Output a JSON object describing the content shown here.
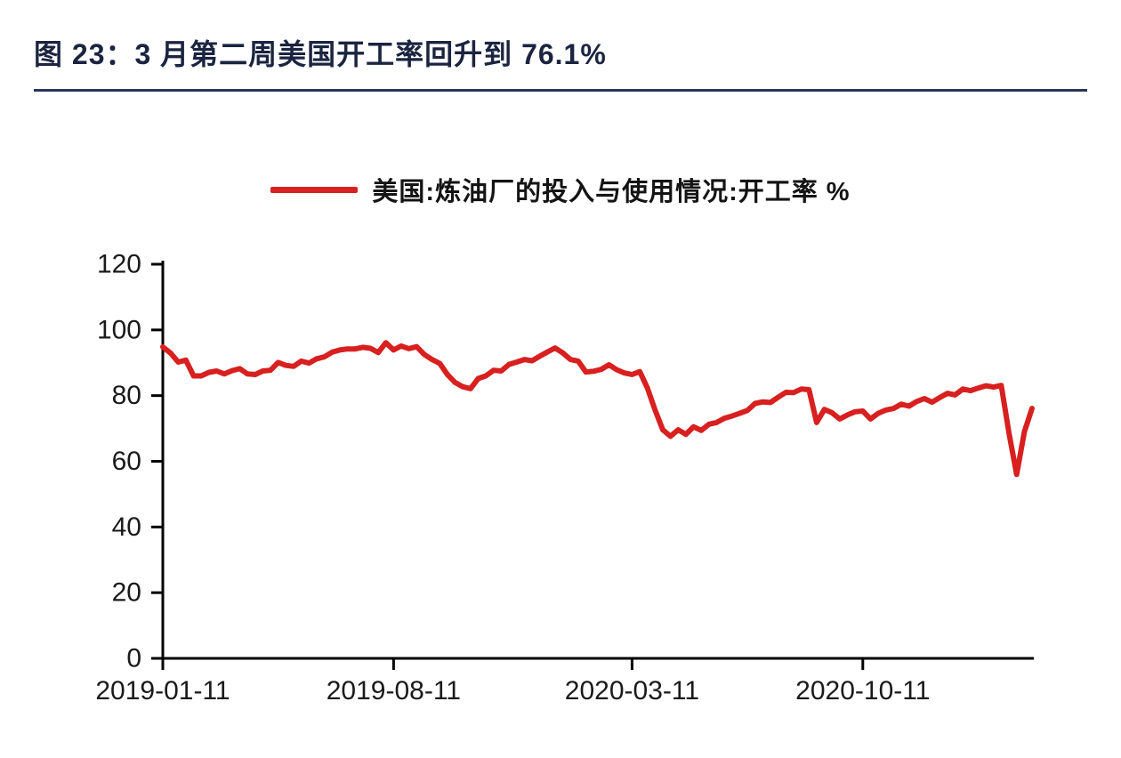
{
  "header": {
    "title": "图 23：3 月第二周美国开工率回升到 76.1%"
  },
  "legend": {
    "label": "美国:炼油厂的投入与使用情况:开工率 %"
  },
  "colors": {
    "series_red": "#d7201f",
    "title_text": "#1b2440",
    "divider_navy": "#293659",
    "axis": "#000000",
    "tick_text": "#1a1a1a",
    "background": "#ffffff"
  },
  "chart_data": {
    "type": "line",
    "title": "图 23：3 月第二周美国开工率回升到 76.1%",
    "xlabel": "",
    "ylabel": "",
    "ylim": [
      0,
      120
    ],
    "y_ticks": [
      0,
      20,
      40,
      60,
      80,
      100,
      120
    ],
    "x_tick_labels": [
      "2019-01-11",
      "2019-08-11",
      "2020-03-11",
      "2020-10-11"
    ],
    "x_tick_indices": [
      0,
      30,
      61,
      91
    ],
    "grid": false,
    "legend_position": "top",
    "series": [
      {
        "name": "美国:炼油厂的投入与使用情况:开工率 %",
        "color": "#d7201f",
        "values": [
          94.8,
          93.0,
          90.2,
          90.8,
          86.0,
          86.0,
          87.1,
          87.5,
          86.6,
          87.6,
          88.2,
          86.6,
          86.4,
          87.5,
          87.7,
          90.1,
          89.2,
          88.9,
          90.5,
          89.9,
          91.2,
          91.8,
          93.2,
          93.9,
          94.2,
          94.2,
          94.7,
          94.4,
          93.1,
          96.1,
          93.9,
          95.1,
          94.3,
          94.9,
          92.5,
          91.0,
          89.8,
          86.4,
          84.0,
          82.7,
          82.1,
          85.2,
          86.0,
          87.7,
          87.5,
          89.5,
          90.2,
          91.0,
          90.6,
          92.0,
          93.3,
          94.5,
          93.0,
          91.0,
          90.5,
          87.2,
          87.4,
          88.0,
          89.4,
          87.9,
          86.9,
          86.4,
          87.3,
          82.3,
          75.6,
          69.6,
          67.6,
          69.6,
          68.2,
          70.5,
          69.4,
          71.3,
          71.8,
          73.1,
          73.8,
          74.6,
          75.5,
          77.6,
          78.1,
          77.9,
          79.5,
          81.0,
          80.9,
          82.0,
          81.8,
          71.8,
          75.8,
          74.8,
          72.9,
          74.1,
          75.1,
          75.3,
          72.9,
          74.6,
          75.6,
          76.1,
          77.4,
          76.8,
          78.2,
          79.1,
          78.0,
          79.4,
          80.7,
          80.2,
          82.0,
          81.5,
          82.3,
          83.0,
          82.6,
          83.1,
          68.6,
          56.0,
          69.0,
          76.1
        ]
      }
    ]
  }
}
